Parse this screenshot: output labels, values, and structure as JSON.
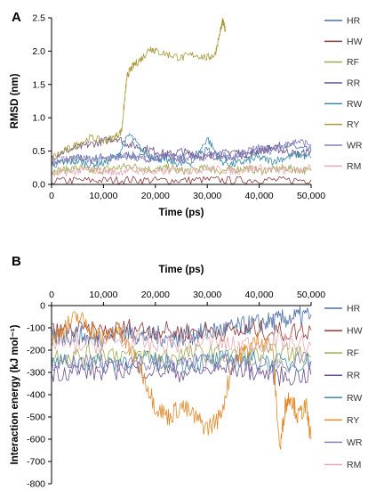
{
  "chart_data": [
    {
      "panel": "A",
      "type": "line",
      "xlabel": "Time (ps)",
      "ylabel": "RMSD (nm)",
      "xlim": [
        0,
        50000
      ],
      "ylim": [
        0,
        2.5
      ],
      "xticks": [
        0,
        10000,
        20000,
        30000,
        40000,
        50000
      ],
      "xtick_labels": [
        "0",
        "10,000",
        "20,000",
        "30,000",
        "40,000",
        "50,000"
      ],
      "yticks": [
        0,
        0.5,
        1.0,
        1.5,
        2.0,
        2.5
      ],
      "ytick_labels": [
        "0.0",
        "0.5",
        "1.0",
        "1.5",
        "2.0",
        "2.5"
      ],
      "xaxis_position": "bottom",
      "grid": false,
      "legend_position": "right",
      "series": [
        {
          "name": "HR",
          "color": "#4f6fa8",
          "x": [
            0,
            2500,
            5000,
            7500,
            10000,
            12500,
            15000,
            17500,
            20000,
            22500,
            25000,
            27500,
            30000,
            32500,
            35000,
            37500,
            40000,
            42500,
            45000,
            47500,
            50000
          ],
          "values": [
            0.3,
            0.35,
            0.4,
            0.38,
            0.42,
            0.4,
            0.45,
            0.4,
            0.38,
            0.42,
            0.4,
            0.45,
            0.5,
            0.42,
            0.4,
            0.45,
            0.5,
            0.55,
            0.6,
            0.55,
            0.5
          ]
        },
        {
          "name": "HW",
          "color": "#8a3a3a",
          "x": [
            0,
            5000,
            10000,
            15000,
            20000,
            25000,
            30000,
            35000,
            40000,
            45000,
            50000
          ],
          "values": [
            0.05,
            0.06,
            0.06,
            0.07,
            0.06,
            0.06,
            0.07,
            0.06,
            0.07,
            0.06,
            0.07
          ]
        },
        {
          "name": "RF",
          "color": "#9aab4e",
          "x": [
            0,
            2500,
            5000,
            7500,
            10000,
            12500,
            15000,
            17500,
            20000,
            22500,
            25000,
            27500,
            30000,
            32500,
            35000,
            37500,
            40000,
            42500,
            45000,
            47500,
            50000
          ],
          "values": [
            0.2,
            0.22,
            0.25,
            0.2,
            0.22,
            0.25,
            0.28,
            0.25,
            0.22,
            0.25,
            0.2,
            0.22,
            0.25,
            0.2,
            0.22,
            0.25,
            0.2,
            0.22,
            0.25,
            0.22,
            0.2
          ]
        },
        {
          "name": "RR",
          "color": "#6b4f8a",
          "x": [
            0,
            2500,
            5000,
            7500,
            10000,
            12500,
            15000,
            17500,
            20000,
            22500,
            25000,
            27500,
            30000,
            32500,
            35000,
            37500,
            40000,
            42500,
            45000,
            47500,
            50000
          ],
          "values": [
            0.4,
            0.5,
            0.55,
            0.6,
            0.65,
            0.7,
            0.6,
            0.55,
            0.5,
            0.45,
            0.5,
            0.45,
            0.4,
            0.45,
            0.5,
            0.45,
            0.5,
            0.55,
            0.5,
            0.45,
            0.5
          ]
        },
        {
          "name": "RW",
          "color": "#3f8aa8",
          "x": [
            0,
            2500,
            5000,
            7500,
            10000,
            12500,
            15000,
            17500,
            20000,
            22500,
            25000,
            27500,
            30000,
            32500,
            35000,
            37500,
            40000,
            42500,
            45000,
            47500,
            50000
          ],
          "values": [
            0.3,
            0.32,
            0.35,
            0.3,
            0.32,
            0.4,
            0.75,
            0.5,
            0.4,
            0.35,
            0.3,
            0.35,
            0.7,
            0.35,
            0.3,
            0.35,
            0.4,
            0.35,
            0.4,
            0.45,
            0.4
          ]
        },
        {
          "name": "RY",
          "color": "#a89a3a",
          "x": [
            0,
            2500,
            5000,
            7500,
            10000,
            12000,
            13500,
            14000,
            14500,
            15000,
            16000,
            17500,
            19000,
            20000,
            22500,
            25000,
            27500,
            30000,
            31500,
            32500,
            33000,
            33500
          ],
          "values": [
            0.4,
            0.5,
            0.6,
            0.7,
            0.65,
            0.7,
            0.8,
            1.2,
            1.6,
            1.7,
            1.8,
            1.9,
            2.05,
            2.0,
            1.95,
            1.9,
            1.95,
            1.9,
            1.95,
            2.3,
            2.45,
            2.3
          ]
        },
        {
          "name": "WR",
          "color": "#8c7dbb",
          "x": [
            0,
            2500,
            5000,
            7500,
            10000,
            12500,
            15000,
            17500,
            20000,
            22500,
            25000,
            27500,
            30000,
            32500,
            35000,
            37500,
            40000,
            42500,
            45000,
            47500,
            50000
          ],
          "values": [
            0.35,
            0.38,
            0.4,
            0.35,
            0.38,
            0.4,
            0.42,
            0.38,
            0.4,
            0.42,
            0.38,
            0.4,
            0.42,
            0.45,
            0.4,
            0.5,
            0.55,
            0.5,
            0.6,
            0.65,
            0.6
          ]
        },
        {
          "name": "RM",
          "color": "#e8a8b0",
          "x": [
            0,
            2500,
            5000,
            7500,
            10000,
            12500,
            15000,
            17500,
            20000,
            22500,
            25000,
            27500,
            30000,
            32500,
            35000,
            37500,
            40000,
            42500,
            45000,
            47500,
            50000
          ],
          "values": [
            0.15,
            0.18,
            0.2,
            0.22,
            0.2,
            0.18,
            0.22,
            0.2,
            0.18,
            0.2,
            0.22,
            0.2,
            0.25,
            0.22,
            0.2,
            0.22,
            0.25,
            0.22,
            0.2,
            0.22,
            0.25
          ]
        }
      ]
    },
    {
      "panel": "B",
      "type": "line",
      "xlabel": "Time (ps)",
      "ylabel": "Interaction energy (kJ mol⁻¹)",
      "xlim": [
        0,
        50000
      ],
      "ylim": [
        -800,
        0
      ],
      "xticks": [
        0,
        10000,
        20000,
        30000,
        40000,
        50000
      ],
      "xtick_labels": [
        "0",
        "10,000",
        "20,000",
        "30,000",
        "40,000",
        "50,000"
      ],
      "yticks": [
        0,
        -100,
        -200,
        -300,
        -400,
        -500,
        -600,
        -700,
        -800
      ],
      "ytick_labels": [
        "0",
        "-100",
        "-200",
        "-300",
        "-400",
        "-500",
        "-600",
        "-700",
        "-800"
      ],
      "xaxis_position": "top",
      "grid": false,
      "legend_position": "right",
      "series": [
        {
          "name": "HR",
          "color": "#4f6fa8",
          "x": [
            0,
            2500,
            5000,
            7500,
            10000,
            12500,
            15000,
            17500,
            20000,
            22500,
            25000,
            27500,
            30000,
            32500,
            35000,
            37500,
            40000,
            42500,
            45000,
            47500,
            50000
          ],
          "values": [
            -150,
            -140,
            -130,
            -150,
            -140,
            -130,
            -120,
            -140,
            -130,
            -150,
            -140,
            -130,
            -120,
            -110,
            -100,
            -90,
            -80,
            -70,
            -60,
            -50,
            -40
          ]
        },
        {
          "name": "HW",
          "color": "#8a3a3a",
          "x": [
            0,
            5000,
            10000,
            15000,
            20000,
            25000,
            30000,
            35000,
            40000,
            45000,
            50000
          ],
          "values": [
            -120,
            -110,
            -120,
            -100,
            -110,
            -120,
            -110,
            -120,
            -110,
            -120,
            -110
          ]
        },
        {
          "name": "RF",
          "color": "#9aab4e",
          "x": [
            0,
            5000,
            10000,
            15000,
            20000,
            25000,
            30000,
            35000,
            40000,
            45000,
            50000
          ],
          "values": [
            -220,
            -230,
            -210,
            -220,
            -230,
            -220,
            -210,
            -230,
            -220,
            -210,
            -230
          ]
        },
        {
          "name": "RR",
          "color": "#6b4f8a",
          "x": [
            0,
            5000,
            10000,
            15000,
            20000,
            25000,
            30000,
            35000,
            40000,
            45000,
            50000
          ],
          "values": [
            -300,
            -290,
            -300,
            -280,
            -290,
            -300,
            -290,
            -280,
            -300,
            -320,
            -310
          ]
        },
        {
          "name": "RW",
          "color": "#3f8aa8",
          "x": [
            0,
            5000,
            10000,
            15000,
            20000,
            25000,
            30000,
            35000,
            40000,
            45000,
            50000
          ],
          "values": [
            -260,
            -250,
            -260,
            -240,
            -250,
            -260,
            -250,
            -240,
            -250,
            -260,
            -250
          ]
        },
        {
          "name": "RY",
          "color": "#e08a2a",
          "x": [
            0,
            2500,
            5000,
            7500,
            10000,
            12500,
            15000,
            17500,
            20000,
            22500,
            25000,
            27500,
            30000,
            32500,
            35000,
            37500,
            40000,
            42500,
            44000,
            45000,
            46000,
            47500,
            49000,
            50000
          ],
          "values": [
            -150,
            -100,
            -50,
            -100,
            -150,
            -100,
            -200,
            -300,
            -450,
            -500,
            -450,
            -500,
            -550,
            -500,
            -250,
            -200,
            -150,
            -180,
            -650,
            -450,
            -400,
            -500,
            -450,
            -600
          ]
        },
        {
          "name": "WR",
          "color": "#8c7dbb",
          "x": [
            0,
            5000,
            10000,
            15000,
            20000,
            25000,
            30000,
            35000,
            40000,
            45000,
            50000
          ],
          "values": [
            -260,
            -270,
            -260,
            -250,
            -270,
            -260,
            -250,
            -260,
            -270,
            -260,
            -250
          ]
        },
        {
          "name": "RM",
          "color": "#e8a8b0",
          "x": [
            0,
            5000,
            10000,
            15000,
            20000,
            25000,
            30000,
            35000,
            40000,
            45000,
            50000
          ],
          "values": [
            -170,
            -180,
            -170,
            -160,
            -180,
            -170,
            -160,
            -180,
            -170,
            -160,
            -180
          ]
        }
      ]
    }
  ]
}
